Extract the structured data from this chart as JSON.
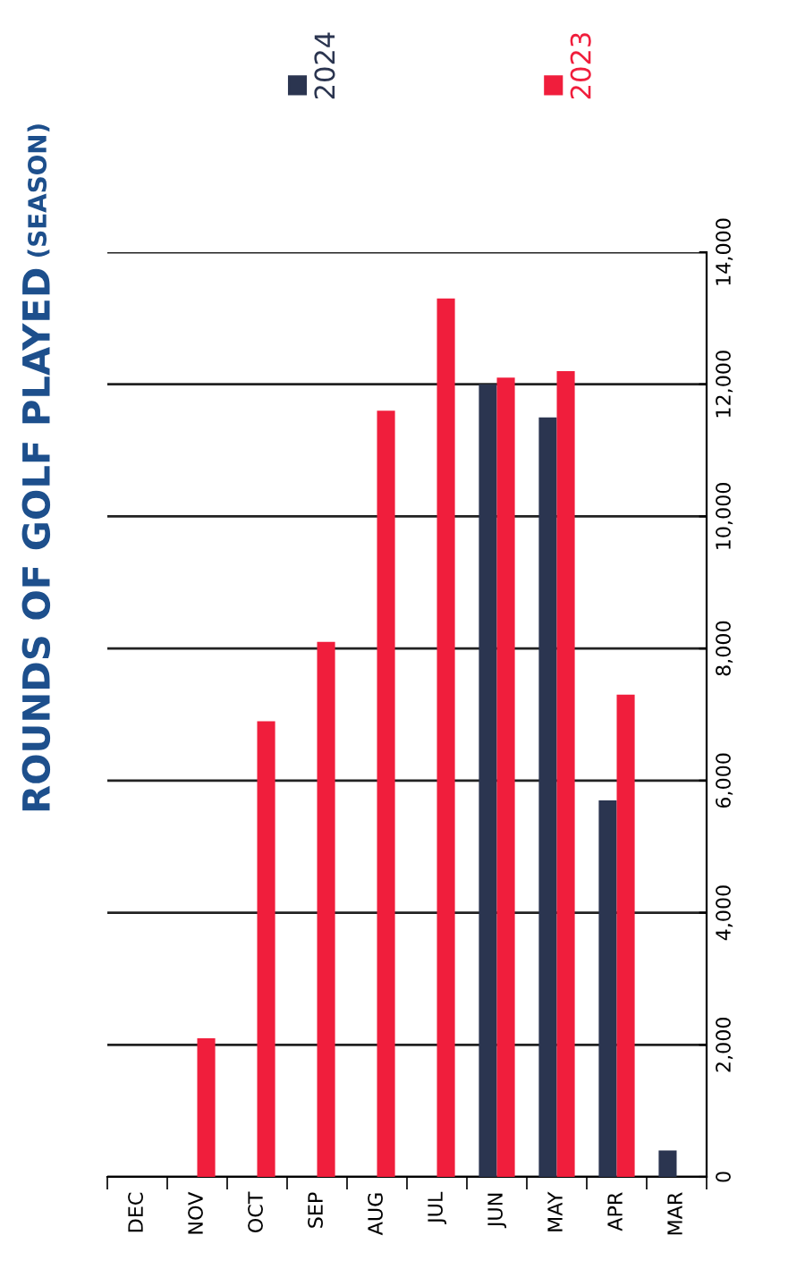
{
  "chart_data": {
    "type": "bar",
    "title": "ROUNDS OF GOLF PLAYED",
    "subtitle": "(SEASON)",
    "categories": [
      "DEC",
      "NOV",
      "OCT",
      "SEP",
      "AUG",
      "JUL",
      "JUN",
      "MAY",
      "APR",
      "MAR"
    ],
    "series": [
      {
        "name": "2024",
        "color": "#2b3550",
        "values": [
          null,
          null,
          null,
          null,
          null,
          null,
          12000,
          11500,
          5700,
          400
        ]
      },
      {
        "name": "2023",
        "color": "#f01e3c",
        "values": [
          null,
          2100,
          6900,
          8100,
          11600,
          13300,
          12100,
          12200,
          7300,
          null
        ]
      }
    ],
    "ylim": [
      0,
      14000
    ],
    "yticks": [
      0,
      {
        "value": 2000,
        "label": "2,000"
      },
      {
        "value": 4000,
        "label": "4,000"
      },
      {
        "value": 6000,
        "label": "6,000"
      },
      {
        "value": 8000,
        "label": "8,000"
      },
      {
        "value": 10000,
        "label": "10,000"
      },
      {
        "value": 12000,
        "label": "12,000"
      },
      {
        "value": 14000,
        "label": "14,000"
      }
    ],
    "grid": "y",
    "legend": "top"
  }
}
